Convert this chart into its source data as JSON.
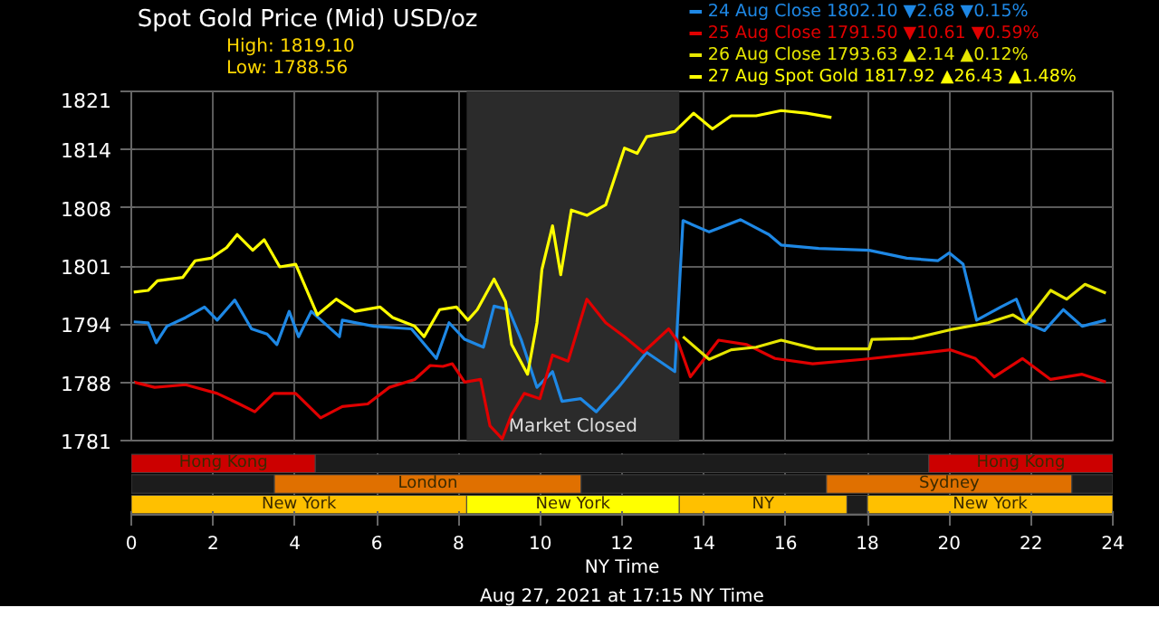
{
  "chart_data": [
    {
      "type": "line",
      "title": "Spot Gold Price (Mid) USD/oz",
      "annotations": [
        "High: 1819.10",
        "Low: 1788.56",
        "Aug 27, 2021 at 17:15 NY Time"
      ],
      "xlim": [
        0,
        24
      ],
      "xticks": [
        0,
        2,
        4,
        6,
        8,
        10,
        12,
        14,
        16,
        18,
        20,
        22,
        24
      ],
      "ylim": [
        1781,
        1821
      ],
      "yticks": [
        {
          "value": 1781,
          "label": "1781"
        },
        {
          "value": 1787.67,
          "label": "1788"
        },
        {
          "value": 1794.33,
          "label": "1794"
        },
        {
          "value": 1801,
          "label": "1801"
        },
        {
          "value": 1807.67,
          "label": "1808"
        },
        {
          "value": 1814.33,
          "label": "1814"
        },
        {
          "value": 1821,
          "label": "1821"
        }
      ],
      "tick_labels": "y",
      "grid": true,
      "legend": "top right",
      "line_style": "solid",
      "marker": "none",
      "bands": [
        {
          "axis": "x",
          "from": 8.2,
          "to": 13.4,
          "label": "Market Closed",
          "color": "#2b2b2b"
        }
      ],
      "series": [
        {
          "name": "24 Aug Close  1802.10  ▼2.68  ▼0.15%",
          "color": "#1e88e5",
          "x": [
            0.06,
            0.41,
            0.61,
            0.87,
            1.33,
            1.79,
            2.1,
            2.53,
            2.94,
            3.32,
            3.56,
            3.86,
            4.09,
            4.4,
            5.09,
            5.16,
            5.93,
            6.85,
            7.46,
            7.77,
            8.15,
            8.61,
            8.87,
            9.23,
            9.53,
            9.92,
            10.3,
            10.53,
            10.99,
            11.37,
            11.91,
            12.6,
            13.29,
            13.49,
            14.13,
            14.9,
            15.59,
            15.89,
            16.81,
            18.04,
            18.96,
            19.72,
            20.0,
            20.34,
            20.67,
            21.26,
            21.64,
            21.87,
            22.33,
            22.79,
            23.25,
            23.83
          ],
          "values": [
            1794.6,
            1794.5,
            1792.2,
            1794.1,
            1795.1,
            1796.3,
            1794.8,
            1797.1,
            1793.8,
            1793.2,
            1792.0,
            1795.8,
            1792.9,
            1795.8,
            1792.9,
            1794.8,
            1794.1,
            1793.8,
            1790.4,
            1794.5,
            1792.6,
            1791.7,
            1796.4,
            1796.0,
            1792.6,
            1787.1,
            1788.9,
            1785.5,
            1785.8,
            1784.3,
            1787.1,
            1791.1,
            1788.9,
            1806.2,
            1804.9,
            1806.3,
            1804.6,
            1803.4,
            1803.0,
            1802.8,
            1801.9,
            1801.6,
            1802.5,
            1801.2,
            1794.8,
            1796.3,
            1797.2,
            1794.5,
            1793.6,
            1796.0,
            1794.1,
            1794.8
          ]
        },
        {
          "name": "25 Aug Close  1791.50  ▼10.61  ▼0.59%",
          "color": "#e00000",
          "x": [
            0.06,
            0.57,
            1.33,
            2.1,
            2.64,
            3.02,
            3.48,
            4.02,
            4.63,
            5.16,
            5.78,
            6.31,
            6.93,
            7.31,
            7.62,
            7.85,
            8.15,
            8.54,
            8.77,
            9.07,
            9.3,
            9.61,
            9.99,
            10.3,
            10.68,
            11.14,
            11.6,
            12.06,
            12.52,
            13.14,
            13.37,
            13.67,
            14.36,
            15.05,
            15.74,
            16.66,
            17.89,
            19.11,
            20.03,
            20.64,
            21.1,
            21.79,
            22.48,
            23.25,
            23.83
          ],
          "values": [
            1787.7,
            1787.1,
            1787.4,
            1786.4,
            1785.2,
            1784.3,
            1786.4,
            1786.4,
            1783.6,
            1784.9,
            1785.2,
            1787.1,
            1788.0,
            1789.6,
            1789.5,
            1789.8,
            1787.7,
            1788.0,
            1782.7,
            1781.2,
            1784.0,
            1786.4,
            1785.8,
            1790.8,
            1790.1,
            1797.2,
            1794.5,
            1792.9,
            1791.1,
            1793.8,
            1792.3,
            1788.3,
            1792.5,
            1792.0,
            1790.4,
            1789.8,
            1790.3,
            1790.9,
            1791.4,
            1790.4,
            1788.3,
            1790.4,
            1788.0,
            1788.6,
            1787.7
          ]
        },
        {
          "name": "26 Aug Close  1793.63  ▲2.14  ▲0.12%",
          "color": "#e6e600",
          "x": [
            13.49,
            14.13,
            14.67,
            15.28,
            15.89,
            16.74,
            18.04,
            18.11,
            19.11,
            20.03,
            20.95,
            21.56,
            21.87,
            22.48,
            22.87,
            23.32,
            23.83
          ],
          "values": [
            1792.9,
            1790.3,
            1791.4,
            1791.7,
            1792.5,
            1791.5,
            1791.5,
            1792.6,
            1792.7,
            1793.7,
            1794.5,
            1795.4,
            1794.5,
            1798.2,
            1797.2,
            1798.9,
            1797.9
          ]
        },
        {
          "name": "27 Aug Spot Gold  1817.92  ▲26.43  ▲1.48%",
          "color": "#ffff00",
          "x": [
            0.06,
            0.41,
            0.64,
            1.26,
            1.56,
            1.95,
            2.33,
            2.59,
            2.97,
            3.25,
            3.63,
            4.02,
            4.55,
            5.01,
            5.47,
            6.08,
            6.39,
            6.93,
            7.16,
            7.54,
            7.95,
            8.23,
            8.46,
            8.87,
            9.15,
            9.3,
            9.69,
            9.92,
            10.04,
            10.3,
            10.5,
            10.76,
            11.14,
            11.6,
            12.06,
            12.37,
            12.6,
            13.29,
            13.75,
            14.21,
            14.67,
            15.28,
            15.89,
            16.51,
            17.12
          ],
          "values": [
            1798.0,
            1798.2,
            1799.3,
            1799.7,
            1801.6,
            1801.9,
            1803.1,
            1804.6,
            1802.8,
            1804.0,
            1800.9,
            1801.2,
            1795.4,
            1797.2,
            1795.8,
            1796.3,
            1795.1,
            1794.1,
            1792.9,
            1796.0,
            1796.3,
            1794.8,
            1796.0,
            1799.5,
            1796.9,
            1792.0,
            1788.6,
            1794.5,
            1800.6,
            1805.6,
            1800.0,
            1807.4,
            1806.8,
            1808.0,
            1814.5,
            1813.9,
            1815.8,
            1816.4,
            1818.5,
            1816.7,
            1818.2,
            1818.2,
            1818.8,
            1818.5,
            1818.0
          ]
        }
      ]
    },
    {
      "type": "bar",
      "orientation": "horizontal",
      "stacked": true,
      "categories": [
        null,
        null,
        null
      ],
      "xlim": [
        0,
        24
      ],
      "xticks": [
        0,
        2,
        4,
        6,
        8,
        10,
        12,
        14,
        16,
        18,
        20,
        22,
        24
      ],
      "xlabel": "NY Time",
      "tick_labels": "x",
      "grid": "x",
      "series": [
        {
          "colors": [
            "#cc0000",
            "#1c1c1c",
            "#ffc000"
          ],
          "values": [
            4.5,
            3.5,
            8.2
          ],
          "value_labels": [
            "Hong Kong",
            null,
            "New York"
          ]
        },
        {
          "colors": [
            "#1c1c1c",
            "#e07000",
            "#ffff00"
          ],
          "values": [
            15,
            7.5,
            5.2
          ],
          "value_labels": [
            null,
            "London",
            "New York"
          ]
        },
        {
          "colors": [
            "#cc0000",
            "#1c1c1c",
            "#ffc000"
          ],
          "values": [
            4.5,
            6,
            4.1
          ],
          "value_labels": [
            "Hong Kong",
            null,
            "NY"
          ]
        },
        {
          "colors": [
            "#1c1c1c",
            "#e07000",
            "#1c1c1c"
          ],
          "values": [
            null,
            6,
            0.5
          ],
          "value_labels": [
            null,
            "Sydney",
            null
          ]
        },
        {
          "colors": [
            "#1c1c1c",
            "#1c1c1c",
            "#ffc000"
          ],
          "values": [
            null,
            1,
            6
          ],
          "value_labels": [
            null,
            null,
            "New York"
          ]
        }
      ]
    }
  ]
}
